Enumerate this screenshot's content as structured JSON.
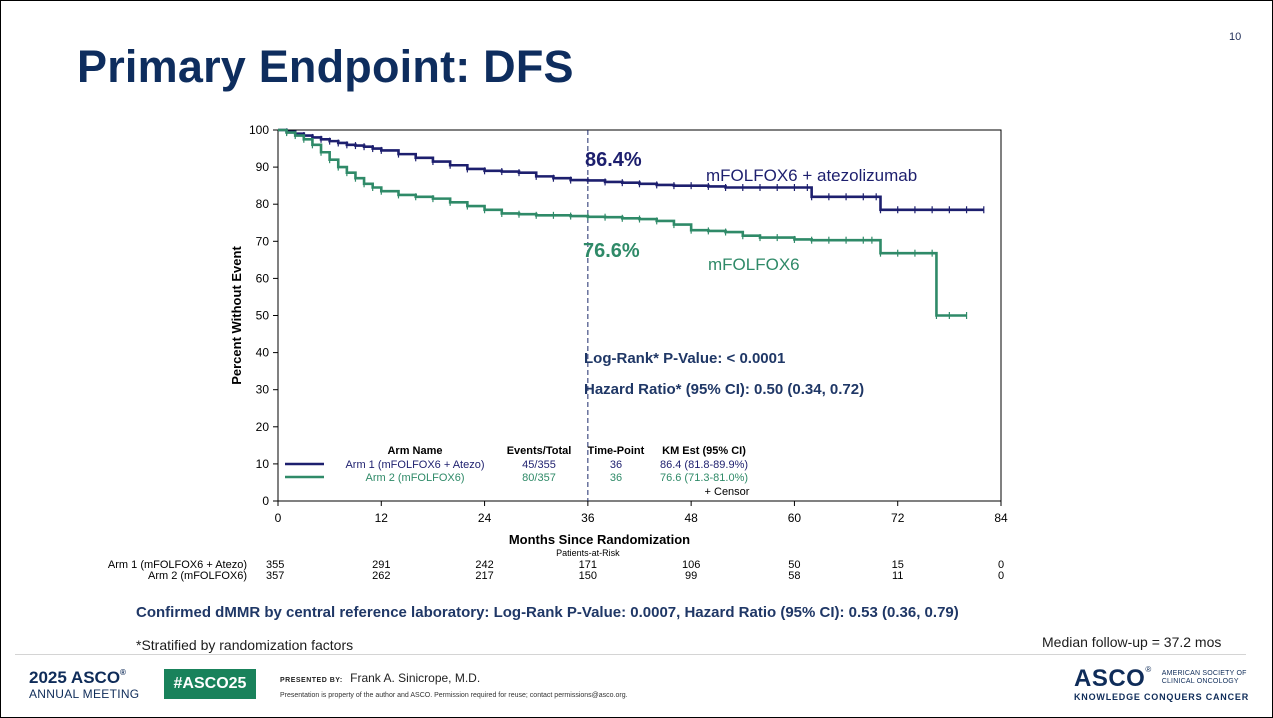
{
  "slide": {
    "page_number": "10",
    "title": "Primary Endpoint: DFS",
    "dmmr_note": "Confirmed dMMR by central reference laboratory: Log-Rank P-Value: 0.0007, Hazard Ratio (95% CI): 0.53 (0.36, 0.79)",
    "stratified_note": "*Stratified by randomization factors",
    "median_followup": "Median follow-up = 37.2 mos"
  },
  "footer": {
    "meeting_year": "2025",
    "meeting_org": "ASCO",
    "meeting_sub": "ANNUAL MEETING",
    "hashtag": "#ASCO25",
    "presented_by_label": "PRESENTED BY:",
    "presenter": "Frank A. Sinicrope, M.D.",
    "copyright": "Presentation is property of the author and ASCO. Permission required for reuse; contact permissions@asco.org.",
    "logo_text": "ASCO",
    "logo_society": [
      "AMERICAN SOCIETY OF",
      "CLINICAL ONCOLOGY"
    ],
    "logo_tagline": "KNOWLEDGE CONQUERS CANCER"
  },
  "chart_data": {
    "type": "line",
    "xlabel": "Months Since Randomization",
    "ylabel": "Percent Without Event",
    "xlim": [
      0,
      84
    ],
    "ylim": [
      0,
      100
    ],
    "xticks": [
      0,
      12,
      24,
      36,
      48,
      60,
      72,
      84
    ],
    "yticks": [
      0,
      10,
      20,
      30,
      40,
      50,
      60,
      70,
      80,
      90,
      100
    ],
    "reference_line_x": 36,
    "series": [
      {
        "name": "mFOLFOX6 + atezolizumab",
        "color": "#1d1f6e",
        "x": [
          0,
          1,
          2,
          3,
          4,
          5,
          6,
          7,
          8,
          9,
          10,
          11,
          12,
          14,
          16,
          18,
          20,
          22,
          24,
          26,
          28,
          30,
          32,
          34,
          36,
          38,
          40,
          42,
          44,
          46,
          48,
          50,
          52,
          54,
          56,
          58,
          60,
          61.5,
          62,
          64,
          66,
          68,
          69.5,
          70,
          72,
          74,
          76,
          78,
          80,
          82
        ],
        "y": [
          100,
          99.5,
          99,
          98.5,
          98,
          97.5,
          97,
          96.5,
          96,
          95.8,
          95.5,
          95,
          94.5,
          93.5,
          92.5,
          91.5,
          90.5,
          89.5,
          89,
          88.8,
          88.5,
          87.5,
          87,
          86.5,
          86.4,
          86,
          85.8,
          85.5,
          85.2,
          85,
          85,
          84.8,
          84.5,
          84.5,
          84.5,
          84.5,
          84.5,
          84.5,
          82,
          82,
          82,
          82,
          82,
          78.5,
          78.5,
          78.5,
          78.5,
          78.5,
          78.5,
          78.5
        ],
        "endpoint_label": "86.4%",
        "curve_label": "mFOLFOX6 + atezolizumab"
      },
      {
        "name": "mFOLFOX6",
        "color": "#2f8a68",
        "x": [
          0,
          1,
          2,
          3,
          4,
          5,
          6,
          7,
          8,
          9,
          10,
          11,
          12,
          14,
          16,
          18,
          20,
          22,
          24,
          26,
          28,
          30,
          32,
          34,
          36,
          38,
          40,
          42,
          44,
          46,
          48,
          50,
          52,
          54,
          56,
          58,
          60,
          62,
          64,
          66,
          68,
          69,
          70,
          72,
          74,
          76,
          76.5,
          78,
          80
        ],
        "y": [
          100,
          99.3,
          98.5,
          97.5,
          96,
          94,
          92,
          90,
          88.5,
          87,
          85.5,
          84.5,
          83.5,
          82.5,
          82,
          81.5,
          80.5,
          79.5,
          78.5,
          77.5,
          77.3,
          77,
          77,
          76.8,
          76.6,
          76.5,
          76.2,
          76,
          75.5,
          74.5,
          73,
          72.8,
          72.5,
          71.5,
          71,
          71,
          70.5,
          70.3,
          70.3,
          70.3,
          70.3,
          70.3,
          66.8,
          66.8,
          66.8,
          66.8,
          50,
          50,
          50
        ],
        "endpoint_label": "76.6%",
        "curve_label": "mFOLFOX6"
      }
    ],
    "annotations": {
      "log_rank": "Log-Rank* P-Value: < 0.0001",
      "hazard_ratio": "Hazard Ratio* (95% CI): 0.50 (0.34, 0.72)"
    },
    "legend_table": {
      "placement": "bottom-left",
      "headers": [
        "Arm Name",
        "Events/Total",
        "Time-Point",
        "KM Est (95% CI)"
      ],
      "rows": [
        {
          "arm": "Arm 1 (mFOLFOX6 + Atezo)",
          "events": "45/355",
          "time_point": "36",
          "km_est": "86.4 (81.8-89.9%)"
        },
        {
          "arm": "Arm 2 (mFOLFOX6)",
          "events": "80/357",
          "time_point": "36",
          "km_est": "76.6 (71.3-81.0%)"
        }
      ],
      "censor_label": "+ Censor"
    },
    "at_risk": {
      "title": "Patients-at-Risk",
      "rows": [
        {
          "label": "Arm 1 (mFOLFOX6 + Atezo)",
          "values": [
            355,
            291,
            242,
            171,
            106,
            50,
            15,
            0
          ]
        },
        {
          "label": "Arm 2 (mFOLFOX6)",
          "values": [
            357,
            262,
            217,
            150,
            99,
            58,
            11,
            0
          ]
        }
      ]
    }
  }
}
